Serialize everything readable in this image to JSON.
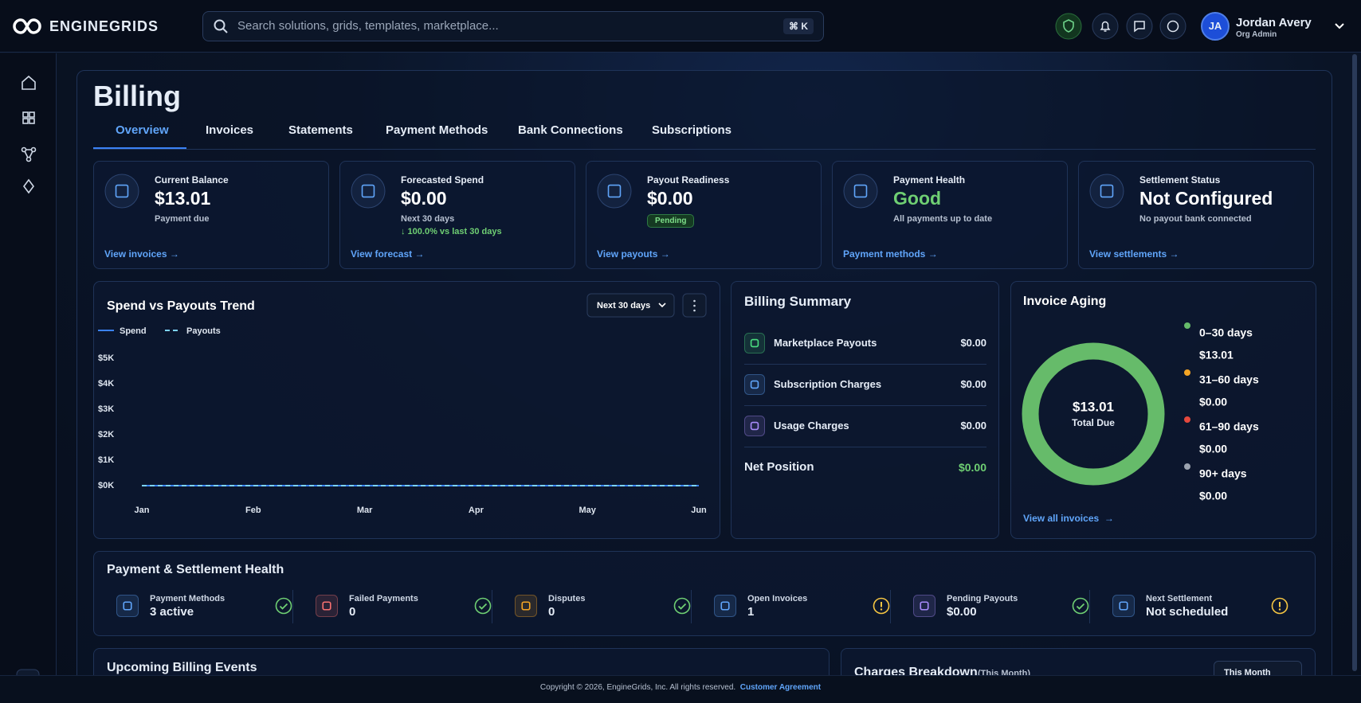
{
  "header": {
    "brand": "ENGINEGRIDS",
    "search_placeholder": "Search solutions, grids, templates, marketplace...",
    "shortcut": "⌘ K",
    "user": {
      "initials": "JA",
      "name": "Jordan Avery",
      "role": "Org Admin"
    }
  },
  "page": {
    "title": "Billing",
    "tabs": [
      "Overview",
      "Invoices",
      "Statements",
      "Payment Methods",
      "Bank Connections",
      "Subscriptions"
    ],
    "active_tab": 0
  },
  "kpis": [
    {
      "label": "Current Balance",
      "value": "$13.01",
      "sub": "Payment due",
      "link": "View invoices →"
    },
    {
      "label": "Forecasted Spend",
      "value": "$0.00",
      "sub": "Next 30 days",
      "trend": "↓ 100.0% vs last 30 days",
      "link": "View forecast →"
    },
    {
      "label": "Payout Readiness",
      "value": "$0.00",
      "badge": "Pending",
      "link": "View payouts →"
    },
    {
      "label": "Payment Health",
      "value": "Good",
      "tone": "good",
      "sub": "All payments up to date",
      "link": "Payment methods →"
    },
    {
      "label": "Settlement Status",
      "value": "Not Configured",
      "sub": "No payout bank connected",
      "link": "View settlements →"
    }
  ],
  "chart_data": [
    {
      "type": "line",
      "title": "Spend vs Payouts Trend",
      "range": "Next 30 days",
      "categories": [
        "Jan",
        "Feb",
        "Mar",
        "Apr",
        "May",
        "Jun"
      ],
      "series": [
        {
          "name": "Spend",
          "color": "#3b82f6",
          "values": [
            0,
            0,
            0,
            0,
            0,
            0
          ]
        },
        {
          "name": "Payouts",
          "color": "#7dd3fc",
          "dash": true,
          "values": [
            0,
            0,
            0,
            0,
            0,
            0
          ]
        }
      ],
      "ylim": [
        0,
        5000
      ],
      "yticks": [
        {
          "value": 0,
          "label": "$0K"
        },
        {
          "value": 1000,
          "label": "$1K"
        },
        {
          "value": 2000,
          "label": "$2K"
        },
        {
          "value": 3000,
          "label": "$3K"
        },
        {
          "value": 4000,
          "label": "$4K"
        },
        {
          "value": 5000,
          "label": "$5K"
        }
      ],
      "grid": false
    },
    {
      "type": "pie",
      "title": "Invoice Aging",
      "categories": [
        "0–30 days",
        "31–60 days",
        "61–90 days",
        "90+ days"
      ],
      "values": [
        13.01,
        0,
        0,
        0
      ],
      "value_labels": [
        "$13.01",
        "$0.00",
        "$0.00",
        "$0.00"
      ],
      "colors": [
        "#66bb6a",
        "#f5a524",
        "#e5483d",
        "#9ca3af"
      ],
      "donut": true,
      "center_value": "$13.01",
      "center_label": "Total Due",
      "link": "View all invoices  →"
    }
  ],
  "billing_summary": {
    "title": "Billing Summary",
    "rows": [
      {
        "label": "Marketplace Payouts",
        "value": "$0.00",
        "color": "#4ade80"
      },
      {
        "label": "Subscription Charges",
        "value": "$0.00",
        "color": "#60a5fa"
      },
      {
        "label": "Usage Charges",
        "value": "$0.00",
        "color": "#a78bfa"
      }
    ],
    "total": {
      "label": "Net Position",
      "value": "$0.00"
    }
  },
  "health": {
    "title": "Payment & Settlement Health",
    "items": [
      {
        "label": "Payment Methods",
        "value": "3 active",
        "status": "ok",
        "color": "#60a5fa"
      },
      {
        "label": "Failed Payments",
        "value": "0",
        "status": "ok",
        "color": "#f87171"
      },
      {
        "label": "Disputes",
        "value": "0",
        "status": "ok",
        "color": "#f5a524"
      },
      {
        "label": "Open Invoices",
        "value": "1",
        "status": "warn",
        "color": "#60a5fa"
      },
      {
        "label": "Pending Payouts",
        "value": "$0.00",
        "status": "ok",
        "color": "#a78bfa"
      },
      {
        "label": "Next Settlement",
        "value": "Not scheduled",
        "status": "warn",
        "color": "#60a5fa"
      }
    ]
  },
  "upcoming": {
    "title": "Upcoming Billing Events"
  },
  "charges": {
    "title": "Charges Breakdown",
    "qualifier": "(This Month)",
    "period": "This Month"
  },
  "footer": {
    "copyright": "Copyright © 2026, EngineGrids, Inc. All rights reserved.",
    "link": "Customer Agreement"
  }
}
